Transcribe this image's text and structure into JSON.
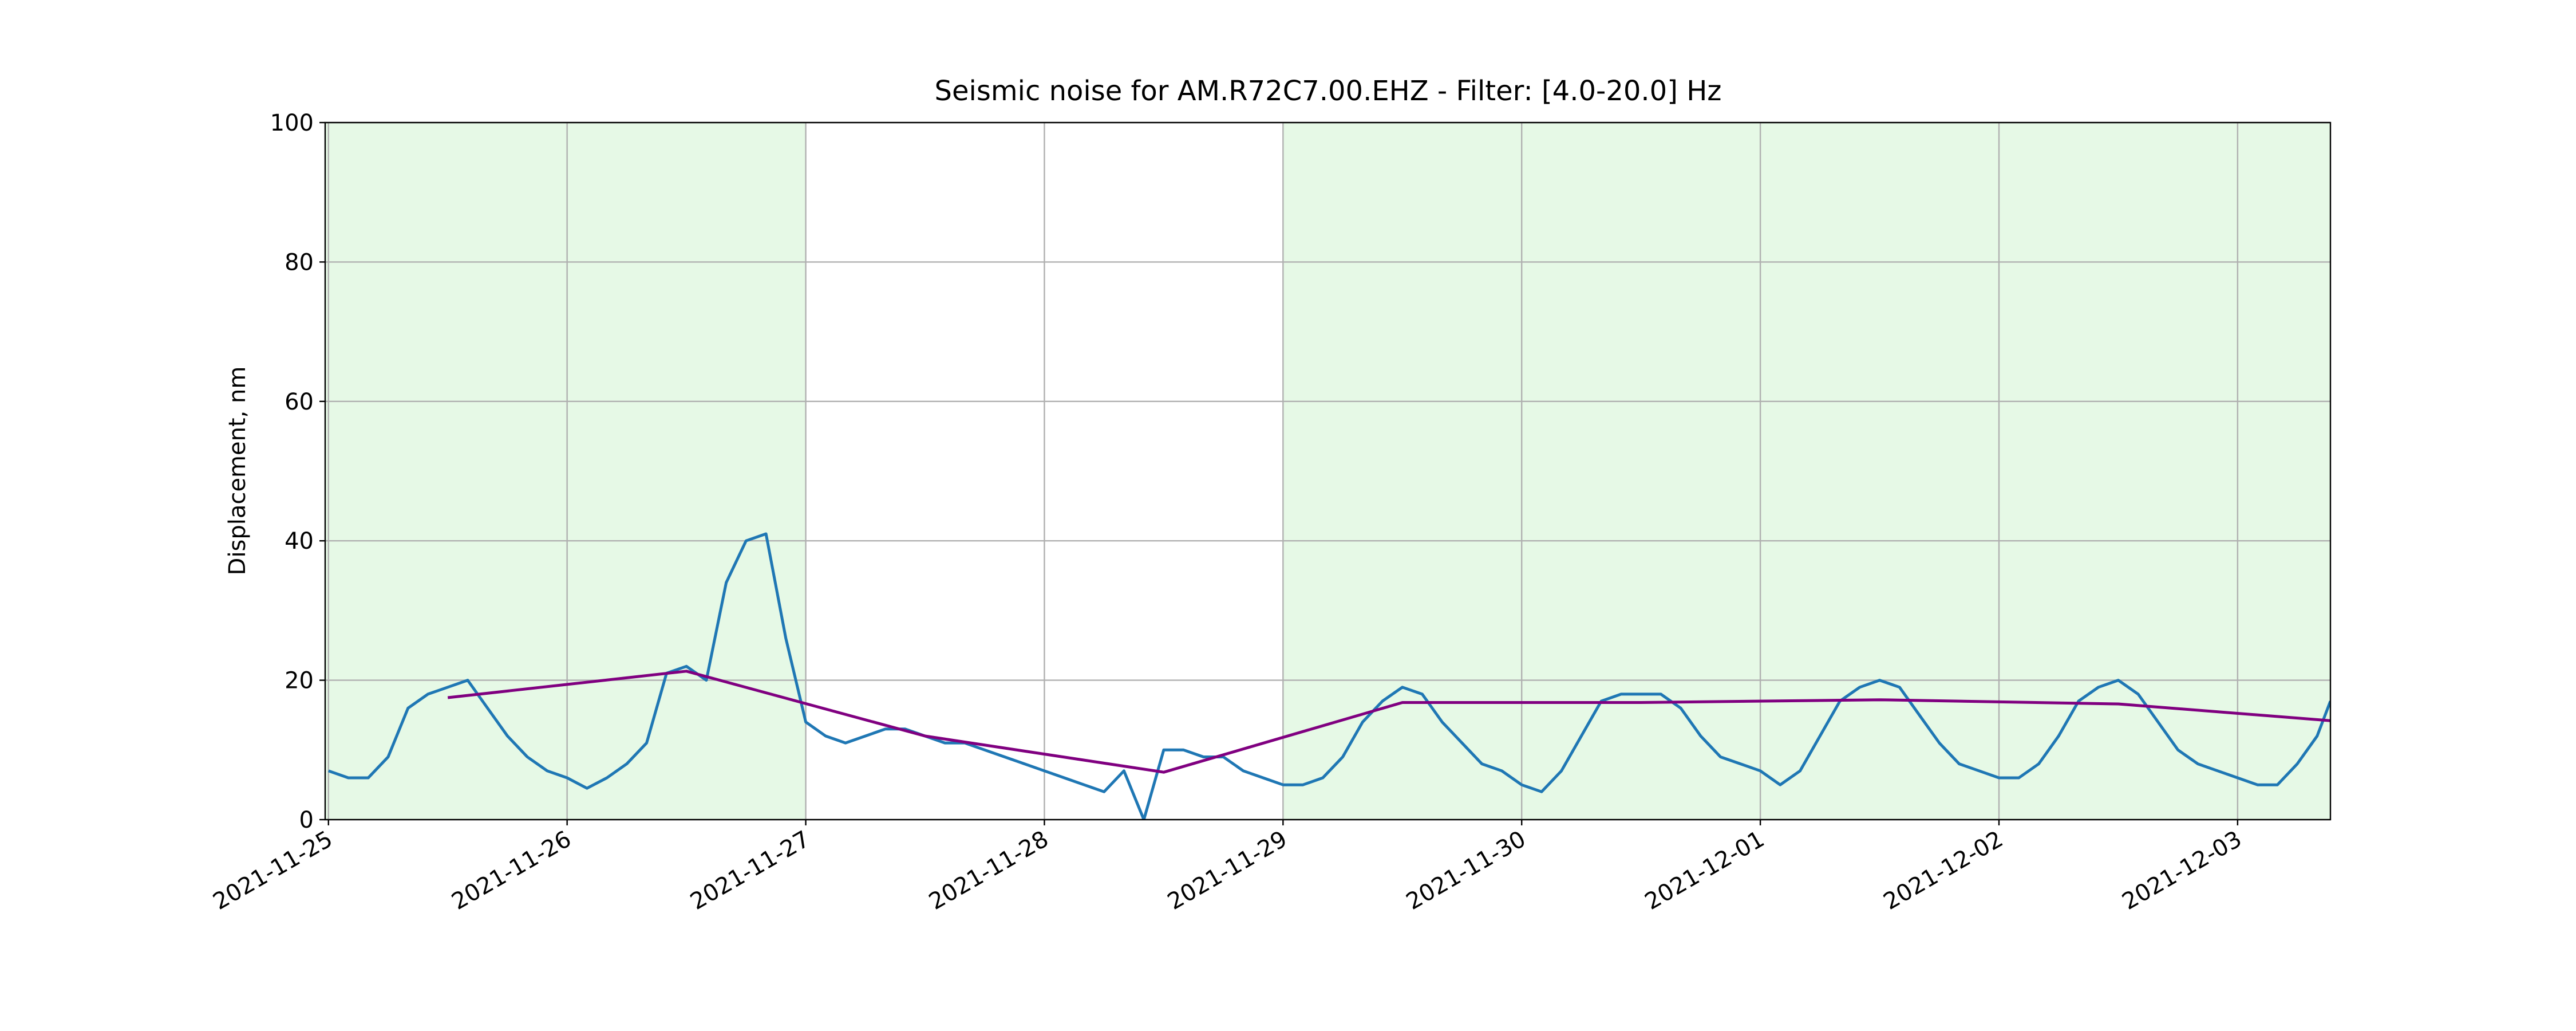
{
  "chart_data": {
    "type": "line",
    "title": "Seismic noise for AM.R72C7.00.EHZ - Filter: [4.0-20.0] Hz",
    "y_label": "Displacement, nm",
    "xlim": [
      "2021-11-24T23:40",
      "2021-12-03T09:20"
    ],
    "xticks": [
      "2021-11-25",
      "2021-11-26",
      "2021-11-27",
      "2021-11-28",
      "2021-11-29",
      "2021-11-30",
      "2021-12-01",
      "2021-12-02",
      "2021-12-03"
    ],
    "ylim": [
      0,
      100
    ],
    "yticks": [
      0,
      20,
      40,
      60,
      80,
      100
    ],
    "grid": true,
    "spans_color": "#e6f9e6",
    "spans": [
      {
        "start": "2021-11-24T23:40",
        "end": "2021-11-27"
      },
      {
        "start": "2021-11-29",
        "end": "2021-12-03T09:20"
      }
    ],
    "series": [
      {
        "color": "#1f77b4",
        "x": [
          "2021-11-25T00:00",
          "2021-11-25T02:00",
          "2021-11-25T04:00",
          "2021-11-25T06:00",
          "2021-11-25T08:00",
          "2021-11-25T10:00",
          "2021-11-25T12:00",
          "2021-11-25T14:00",
          "2021-11-25T16:00",
          "2021-11-25T18:00",
          "2021-11-25T20:00",
          "2021-11-25T22:00",
          "2021-11-26T00:00",
          "2021-11-26T02:00",
          "2021-11-26T04:00",
          "2021-11-26T06:00",
          "2021-11-26T08:00",
          "2021-11-26T10:00",
          "2021-11-26T12:00",
          "2021-11-26T14:00",
          "2021-11-26T16:00",
          "2021-11-26T18:00",
          "2021-11-26T20:00",
          "2021-11-26T22:00",
          "2021-11-27T00:00",
          "2021-11-27T02:00",
          "2021-11-27T04:00",
          "2021-11-27T06:00",
          "2021-11-27T08:00",
          "2021-11-27T10:00",
          "2021-11-27T12:00",
          "2021-11-27T14:00",
          "2021-11-27T16:00",
          "2021-11-27T18:00",
          "2021-11-27T20:00",
          "2021-11-27T22:00",
          "2021-11-28T00:00",
          "2021-11-28T02:00",
          "2021-11-28T04:00",
          "2021-11-28T06:00",
          "2021-11-28T08:00",
          "2021-11-28T10:00",
          "2021-11-28T12:00",
          "2021-11-28T14:00",
          "2021-11-28T16:00",
          "2021-11-28T18:00",
          "2021-11-28T20:00",
          "2021-11-28T22:00",
          "2021-11-29T00:00",
          "2021-11-29T02:00",
          "2021-11-29T04:00",
          "2021-11-29T06:00",
          "2021-11-29T08:00",
          "2021-11-29T10:00",
          "2021-11-29T12:00",
          "2021-11-29T14:00",
          "2021-11-29T16:00",
          "2021-11-29T18:00",
          "2021-11-29T20:00",
          "2021-11-29T22:00",
          "2021-11-30T00:00",
          "2021-11-30T02:00",
          "2021-11-30T04:00",
          "2021-11-30T06:00",
          "2021-11-30T08:00",
          "2021-11-30T10:00",
          "2021-11-30T12:00",
          "2021-11-30T14:00",
          "2021-11-30T16:00",
          "2021-11-30T18:00",
          "2021-11-30T20:00",
          "2021-11-30T22:00",
          "2021-12-01T00:00",
          "2021-12-01T02:00",
          "2021-12-01T04:00",
          "2021-12-01T06:00",
          "2021-12-01T08:00",
          "2021-12-01T10:00",
          "2021-12-01T12:00",
          "2021-12-01T14:00",
          "2021-12-01T16:00",
          "2021-12-01T18:00",
          "2021-12-01T20:00",
          "2021-12-01T22:00",
          "2021-12-02T00:00",
          "2021-12-02T02:00",
          "2021-12-02T04:00",
          "2021-12-02T06:00",
          "2021-12-02T08:00",
          "2021-12-02T10:00",
          "2021-12-02T12:00",
          "2021-12-02T14:00",
          "2021-12-02T16:00",
          "2021-12-02T18:00",
          "2021-12-02T20:00",
          "2021-12-02T22:00",
          "2021-12-03T00:00",
          "2021-12-03T02:00",
          "2021-12-03T04:00",
          "2021-12-03T06:00",
          "2021-12-03T08:00",
          "2021-12-03T09:20"
        ],
        "values": [
          7,
          6,
          6,
          9,
          16,
          18,
          19,
          20,
          16,
          12,
          9,
          7,
          6,
          4.5,
          6,
          8,
          11,
          21,
          22,
          20,
          34,
          40,
          41,
          26,
          14,
          12,
          11,
          12,
          13,
          13,
          12,
          11,
          11,
          10,
          9,
          8,
          7,
          6,
          5,
          4,
          7,
          0,
          10,
          10,
          9,
          9,
          7,
          6,
          5,
          5,
          6,
          9,
          14,
          17,
          19,
          18,
          14,
          11,
          8,
          7,
          5,
          4,
          7,
          12,
          17,
          18,
          18,
          18,
          16,
          12,
          9,
          8,
          7,
          5,
          7,
          12,
          17,
          19,
          20,
          19,
          15,
          11,
          8,
          7,
          6,
          6,
          8,
          12,
          17,
          19,
          20,
          18,
          14,
          10,
          8,
          7,
          6,
          5,
          5,
          8,
          12,
          17
        ]
      },
      {
        "color": "#800080",
        "x": [
          "2021-11-25T12:00",
          "2021-11-26T12:00",
          "2021-11-27T12:00",
          "2021-11-28T12:00",
          "2021-11-29T12:00",
          "2021-11-30T12:00",
          "2021-12-01T12:00",
          "2021-12-02T12:00",
          "2021-12-03T09:20"
        ],
        "values": [
          17.5,
          21.3,
          12,
          6.8,
          16.8,
          16.8,
          17.2,
          16.6,
          14.2
        ]
      }
    ]
  }
}
